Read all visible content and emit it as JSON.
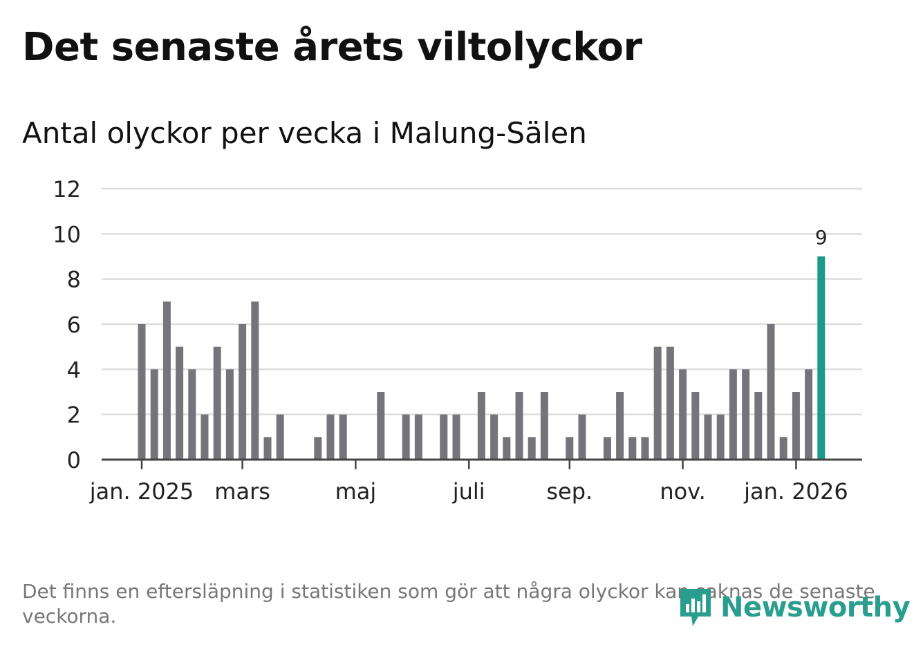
{
  "title": "Det senaste årets viltolyckor",
  "subtitle": "Antal olyckor per vecka i Malung-Sälen",
  "footnote": "Det finns en eftersläpning i statistiken som gör att några olyckor kan saknas de senaste veckorna.",
  "logo_text": "Newsworthy",
  "colors": {
    "bar": "#75747a",
    "highlight": "#1a9a8a",
    "grid": "#dddddd",
    "axis": "#444444",
    "text": "#222222",
    "brand": "#2a9e8e"
  },
  "chart_data": {
    "type": "bar",
    "title": "Det senaste årets viltolyckor",
    "subtitle": "Antal olyckor per vecka i Malung-Sälen",
    "xlabel": "",
    "ylabel": "",
    "ylim": [
      0,
      12
    ],
    "yticks": [
      0,
      2,
      4,
      6,
      8,
      10,
      12
    ],
    "grid": true,
    "x_ticks": [
      {
        "label": "jan. 2025",
        "week_index": 0
      },
      {
        "label": "mars",
        "week_index": 8
      },
      {
        "label": "maj",
        "week_index": 17
      },
      {
        "label": "juli",
        "week_index": 26
      },
      {
        "label": "sep.",
        "week_index": 34
      },
      {
        "label": "nov.",
        "week_index": 43
      },
      {
        "label": "jan. 2026",
        "week_index": 52
      }
    ],
    "values": [
      6,
      4,
      7,
      5,
      4,
      2,
      5,
      4,
      6,
      7,
      1,
      2,
      0,
      0,
      1,
      2,
      2,
      0,
      0,
      3,
      0,
      2,
      2,
      0,
      2,
      2,
      0,
      3,
      2,
      1,
      3,
      1,
      3,
      0,
      1,
      2,
      0,
      1,
      3,
      1,
      1,
      5,
      5,
      4,
      3,
      2,
      2,
      4,
      4,
      3,
      6,
      1,
      3,
      4,
      9
    ],
    "highlight_index": 54,
    "highlight_label": "9"
  }
}
